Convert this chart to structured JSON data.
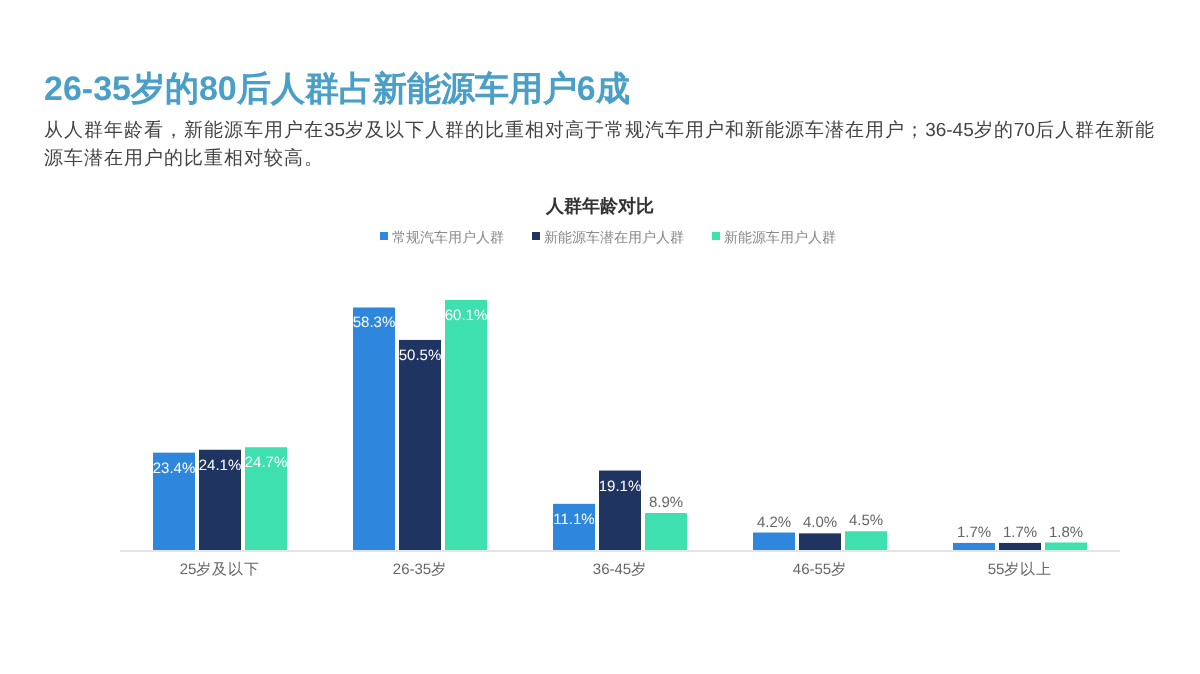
{
  "chart_data": {
    "type": "bar",
    "title": "26-35岁的80后人群占新能源车用户6成",
    "subtitle": "从人群年龄看，新能源车用户在35岁及以下人群的比重相对高于常规汽车用户和新能源车潜在用户；36-45岁的70后人群在新能源车潜在用户的比重相对较高。",
    "annotations": [
      "人群年龄对比"
    ],
    "categories": [
      "25岁及以下",
      "26-35岁",
      "36-45岁",
      "46-55岁",
      "55岁以上"
    ],
    "series": [
      {
        "name": "常规汽车用户人群",
        "color": "#2f86dd",
        "values": [
          23.4,
          58.3,
          11.1,
          4.2,
          1.7
        ],
        "value_labels": [
          "23.4%",
          "58.3%",
          "11.1%",
          "4.2%",
          "1.7%"
        ]
      },
      {
        "name": "新能源车潜在用户人群",
        "color": "#1f3460",
        "values": [
          24.1,
          50.5,
          19.1,
          4.0,
          1.7
        ],
        "value_labels": [
          "24.1%",
          "50.5%",
          "19.1%",
          "4.0%",
          "1.7%"
        ]
      },
      {
        "name": "新能源车用户人群",
        "color": "#3ee0b0",
        "values": [
          24.7,
          60.1,
          8.9,
          4.5,
          1.8
        ],
        "value_labels": [
          "24.7%",
          "60.1%",
          "8.9%",
          "4.5%",
          "1.8%"
        ]
      }
    ],
    "legend": "top"
  }
}
